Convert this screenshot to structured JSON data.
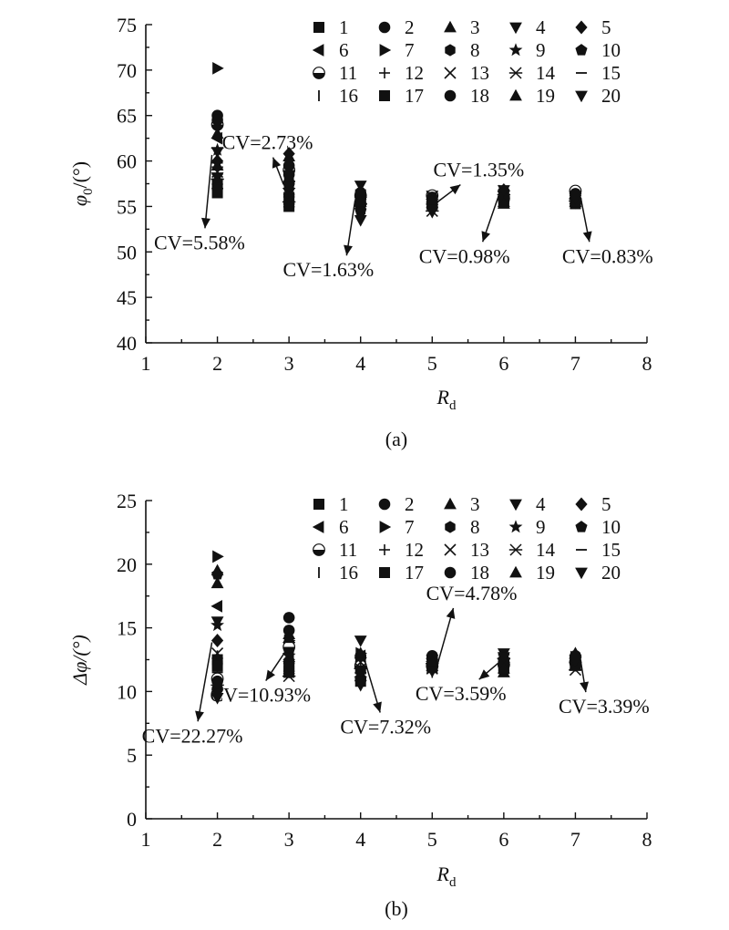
{
  "chart_data": [
    {
      "type": "scatter",
      "panel": "(a)",
      "xlabel": "R",
      "xlabel_sub": "d",
      "ylabel": "φ",
      "ylabel_sub": "0",
      "ylabel_suffix": "/(°)",
      "xlim": [
        1,
        8
      ],
      "ylim": [
        40,
        75
      ],
      "xticks": [
        1,
        2,
        3,
        4,
        5,
        6,
        7,
        8
      ],
      "yticks": [
        40,
        45,
        50,
        55,
        60,
        65,
        70,
        75
      ],
      "legend_placement": "top-right",
      "series": [
        {
          "name": "1",
          "x": [
            2,
            3,
            4,
            5,
            6,
            7
          ],
          "y": [
            57.5,
            56.0,
            55.5,
            55.5,
            55.8,
            55.6
          ]
        },
        {
          "name": "2",
          "x": [
            2,
            3,
            4,
            5,
            6,
            7
          ],
          "y": [
            65.0,
            58.5,
            55.2,
            55.8,
            56.0,
            56.6
          ]
        },
        {
          "name": "3",
          "x": [
            2,
            3,
            4,
            5,
            6,
            7
          ],
          "y": [
            63.0,
            60.5,
            56.5,
            56.0,
            55.5,
            55.8
          ]
        },
        {
          "name": "4",
          "x": [
            2,
            3,
            4,
            5,
            6,
            7
          ],
          "y": [
            58.2,
            56.5,
            57.3,
            56.2,
            55.6,
            55.4
          ]
        },
        {
          "name": "5",
          "x": [
            2,
            3,
            4,
            5,
            6,
            7
          ],
          "y": [
            60.0,
            60.8,
            55.8,
            55.0,
            56.8,
            56.2
          ]
        },
        {
          "name": "6",
          "x": [
            2,
            3,
            4,
            5,
            6,
            7
          ],
          "y": [
            62.5,
            57.5,
            54.8,
            55.3,
            56.6,
            55.9
          ]
        },
        {
          "name": "7",
          "x": [
            2,
            3,
            4,
            5,
            6,
            7
          ],
          "y": [
            70.2,
            57.8,
            56.0,
            55.5,
            56.7,
            55.9
          ]
        },
        {
          "name": "8",
          "x": [
            2,
            3,
            4,
            5,
            6,
            7
          ],
          "y": [
            57.0,
            55.2,
            55.6,
            55.8,
            56.2,
            56.0
          ]
        },
        {
          "name": "9",
          "x": [
            2,
            3,
            4,
            5,
            6,
            7
          ],
          "y": [
            61.2,
            56.8,
            55.0,
            55.6,
            56.5,
            55.6
          ]
        },
        {
          "name": "10",
          "x": [
            2,
            3,
            4,
            5,
            6,
            7
          ],
          "y": [
            56.8,
            57.3,
            54.5,
            55.2,
            56.0,
            55.8
          ]
        },
        {
          "name": "11",
          "x": [
            2,
            3,
            4,
            5,
            6,
            7
          ],
          "y": [
            64.0,
            59.0,
            56.2,
            56.2,
            55.9,
            56.7
          ]
        },
        {
          "name": "12",
          "x": [
            2,
            3,
            4,
            5,
            6,
            7
          ],
          "y": [
            59.2,
            56.2,
            55.4,
            54.8,
            55.6,
            55.5
          ]
        },
        {
          "name": "13",
          "x": [
            2,
            3,
            4,
            5,
            6,
            7
          ],
          "y": [
            58.8,
            55.8,
            55.8,
            55.3,
            56.1,
            55.7
          ]
        },
        {
          "name": "14",
          "x": [
            2,
            3,
            4,
            5,
            6,
            7
          ],
          "y": [
            58.0,
            55.5,
            55.3,
            54.5,
            56.3,
            55.6
          ]
        },
        {
          "name": "15",
          "x": [
            2,
            3,
            4,
            5,
            6,
            7
          ],
          "y": [
            59.8,
            57.0,
            56.8,
            56.5,
            56.5,
            56.1
          ]
        },
        {
          "name": "16",
          "x": [
            2,
            3,
            4,
            5,
            6,
            7
          ],
          "y": [
            60.5,
            58.0,
            57.0,
            55.7,
            55.7,
            55.8
          ]
        },
        {
          "name": "17",
          "x": [
            2,
            3,
            4,
            5,
            6,
            7
          ],
          "y": [
            56.5,
            55.0,
            56.0,
            55.2,
            55.4,
            55.3
          ]
        },
        {
          "name": "18",
          "x": [
            2,
            3,
            4,
            5,
            6,
            7
          ],
          "y": [
            64.5,
            59.5,
            56.5,
            56.0,
            56.0,
            56.4
          ]
        },
        {
          "name": "19",
          "x": [
            2,
            3,
            4,
            5,
            6,
            7
          ],
          "y": [
            59.5,
            58.2,
            55.5,
            55.7,
            55.3,
            55.5
          ]
        },
        {
          "name": "20",
          "x": [
            2,
            3,
            4,
            5,
            6,
            7
          ],
          "y": [
            61.0,
            57.2,
            53.5,
            54.4,
            56.8,
            55.9
          ]
        }
      ],
      "annotations": [
        {
          "text": "CV=5.58%",
          "x": 2,
          "tx": 1.75,
          "ty": 51.0
        },
        {
          "text": "CV=2.73%",
          "x": 3,
          "tx": 2.7,
          "ty": 62.0
        },
        {
          "text": "CV=1.63%",
          "x": 4,
          "tx": 3.55,
          "ty": 48.0
        },
        {
          "text": "CV=1.35%",
          "x": 5,
          "tx": 5.65,
          "ty": 59.0
        },
        {
          "text": "CV=0.98%",
          "x": 6,
          "tx": 5.45,
          "ty": 49.5
        },
        {
          "text": "CV=0.83%",
          "x": 7,
          "tx": 7.45,
          "ty": 49.5
        }
      ]
    },
    {
      "type": "scatter",
      "panel": "(b)",
      "xlabel": "R",
      "xlabel_sub": "d",
      "ylabel": "Δφ/(°)",
      "xlim": [
        1,
        8
      ],
      "ylim": [
        0,
        25
      ],
      "xticks": [
        1,
        2,
        3,
        4,
        5,
        6,
        7,
        8
      ],
      "yticks": [
        0,
        5,
        10,
        15,
        20,
        25
      ],
      "legend_placement": "top-right",
      "series": [
        {
          "name": "1",
          "x": [
            2,
            3,
            4,
            5,
            6,
            7
          ],
          "y": [
            12.5,
            12.0,
            12.0,
            12.0,
            12.0,
            12.2
          ]
        },
        {
          "name": "2",
          "x": [
            2,
            3,
            4,
            5,
            6,
            7
          ],
          "y": [
            10.2,
            15.8,
            11.0,
            12.8,
            12.5,
            12.8
          ]
        },
        {
          "name": "3",
          "x": [
            2,
            3,
            4,
            5,
            6,
            7
          ],
          "y": [
            18.5,
            14.5,
            12.5,
            12.0,
            11.5,
            12.0
          ]
        },
        {
          "name": "4",
          "x": [
            2,
            3,
            4,
            5,
            6,
            7
          ],
          "y": [
            9.5,
            13.5,
            14.0,
            12.5,
            13.0,
            12.5
          ]
        },
        {
          "name": "5",
          "x": [
            2,
            3,
            4,
            5,
            6,
            7
          ],
          "y": [
            14.0,
            12.5,
            11.5,
            12.0,
            12.5,
            12.2
          ]
        },
        {
          "name": "6",
          "x": [
            2,
            3,
            4,
            5,
            6,
            7
          ],
          "y": [
            16.7,
            13.0,
            12.8,
            12.6,
            12.2,
            12.6
          ]
        },
        {
          "name": "7",
          "x": [
            2,
            3,
            4,
            5,
            6,
            7
          ],
          "y": [
            20.6,
            14.0,
            13.0,
            12.5,
            12.3,
            12.7
          ]
        },
        {
          "name": "8",
          "x": [
            2,
            3,
            4,
            5,
            6,
            7
          ],
          "y": [
            12.0,
            11.5,
            12.2,
            11.8,
            12.0,
            12.4
          ]
        },
        {
          "name": "9",
          "x": [
            2,
            3,
            4,
            5,
            6,
            7
          ],
          "y": [
            15.2,
            12.8,
            11.0,
            12.2,
            12.4,
            12.1
          ]
        },
        {
          "name": "10",
          "x": [
            2,
            3,
            4,
            5,
            6,
            7
          ],
          "y": [
            19.2,
            13.2,
            12.5,
            12.4,
            12.2,
            12.3
          ]
        },
        {
          "name": "11",
          "x": [
            2,
            3,
            4,
            5,
            6,
            7
          ],
          "y": [
            11.0,
            13.5,
            12.0,
            12.0,
            12.1,
            12.3
          ]
        },
        {
          "name": "12",
          "x": [
            2,
            3,
            4,
            5,
            6,
            7
          ],
          "y": [
            12.2,
            12.2,
            11.5,
            11.5,
            12.0,
            12.0
          ]
        },
        {
          "name": "13",
          "x": [
            2,
            3,
            4,
            5,
            6,
            7
          ],
          "y": [
            13.0,
            11.8,
            12.3,
            11.8,
            12.5,
            12.2
          ]
        },
        {
          "name": "14",
          "x": [
            2,
            3,
            4,
            5,
            6,
            7
          ],
          "y": [
            10.5,
            11.2,
            11.8,
            12.2,
            12.6,
            11.7
          ]
        },
        {
          "name": "15",
          "x": [
            2,
            3,
            4,
            5,
            6,
            7
          ],
          "y": [
            11.5,
            12.0,
            12.0,
            12.5,
            12.3,
            12.0
          ]
        },
        {
          "name": "16",
          "x": [
            2,
            3,
            4,
            5,
            6,
            7
          ],
          "y": [
            12.8,
            12.5,
            12.5,
            12.1,
            12.1,
            12.2
          ]
        },
        {
          "name": "17",
          "x": [
            2,
            3,
            4,
            5,
            6,
            7
          ],
          "y": [
            12.0,
            11.5,
            10.8,
            12.0,
            11.8,
            12.1
          ]
        },
        {
          "name": "18",
          "x": [
            2,
            3,
            4,
            5,
            6,
            7
          ],
          "y": [
            10.8,
            14.8,
            12.8,
            12.7,
            12.2,
            12.5
          ]
        },
        {
          "name": "19",
          "x": [
            2,
            3,
            4,
            5,
            6,
            7
          ],
          "y": [
            19.5,
            14.2,
            13.0,
            12.3,
            11.8,
            13.0
          ]
        },
        {
          "name": "20",
          "x": [
            2,
            3,
            4,
            5,
            6,
            7
          ],
          "y": [
            15.5,
            12.0,
            10.5,
            11.6,
            12.7,
            12.4
          ]
        }
      ],
      "annotations": [
        {
          "text": "CV=22.27%",
          "x": 2,
          "tx": 1.65,
          "ty": 6.5
        },
        {
          "text": "CV=10.93%",
          "x": 3,
          "tx": 2.6,
          "ty": 9.7
        },
        {
          "text": "CV=7.32%",
          "x": 4,
          "tx": 4.35,
          "ty": 7.2
        },
        {
          "text": "CV=4.78%",
          "x": 5,
          "tx": 5.55,
          "ty": 17.7
        },
        {
          "text": "CV=3.59%",
          "x": 6,
          "tx": 5.4,
          "ty": 9.8
        },
        {
          "text": "CV=3.39%",
          "x": 7,
          "tx": 7.4,
          "ty": 8.8
        }
      ]
    }
  ]
}
